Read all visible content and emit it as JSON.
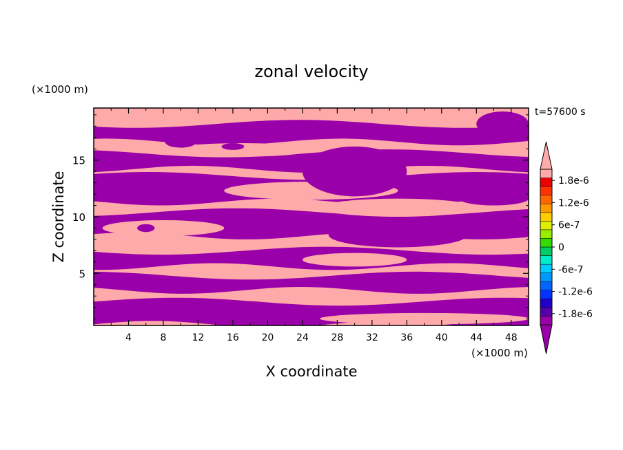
{
  "chart_data": {
    "type": "heatmap",
    "title": "zonal velocity",
    "xlabel": "X coordinate",
    "ylabel": "Z coordinate",
    "x_unit": "(×1000 m)",
    "y_unit": "(×1000 m)",
    "time_label": "t=57600 s",
    "xlim": [
      0,
      50
    ],
    "ylim": [
      0.4,
      19.6
    ],
    "x_ticks": [
      "4",
      "8",
      "12",
      "16",
      "20",
      "24",
      "28",
      "32",
      "36",
      "40",
      "44",
      "48"
    ],
    "y_ticks": [
      "5",
      "10",
      "15"
    ],
    "x_tick_values": [
      4,
      8,
      12,
      16,
      20,
      24,
      28,
      32,
      36,
      40,
      44,
      48
    ],
    "y_tick_values": [
      5,
      10,
      15
    ],
    "colorbar": {
      "labels": [
        "1.8e-6",
        "1.2e-6",
        "6e-7",
        "0",
        "-6e-7",
        "-1.2e-6",
        "-1.8e-6"
      ],
      "label_values": [
        1.8e-06,
        1.2e-06,
        6e-07,
        0,
        -6e-07,
        -1.2e-06,
        -1.8e-06
      ],
      "colors": [
        "#9900aa",
        "#5500aa",
        "#2200cc",
        "#0033ff",
        "#0066ff",
        "#0099ff",
        "#00ccff",
        "#00eecc",
        "#00cc66",
        "#33dd00",
        "#99ee00",
        "#ddee00",
        "#ffcc00",
        "#ff9900",
        "#ff6600",
        "#ff3300",
        "#ee0000",
        "#ffaaaa"
      ],
      "min_value": -2.1e-06,
      "max_value": 2.1e-06
    },
    "field_colors": {
      "positive": "#ffaaaa",
      "negative": "#9900aa"
    },
    "bands_negative": [
      {
        "z0": 0.5,
        "z1": 2.5
      },
      {
        "z0": 3.5,
        "z1": 4.8
      },
      {
        "z0": 5.6,
        "z1": 7.0
      },
      {
        "z0": 8.3,
        "z1": 10.4
      },
      {
        "z0": 11.3,
        "z1": 13.6
      },
      {
        "z0": 14.2,
        "z1": 15.6
      },
      {
        "z0": 16.6,
        "z1": 18.2
      }
    ],
    "blobs_positive": [
      {
        "x": 38,
        "z": 1.0,
        "rx": 12,
        "rz": 0.5
      },
      {
        "x": 30,
        "z": 6.2,
        "rx": 6,
        "rz": 0.6
      },
      {
        "x": 8,
        "z": 9.0,
        "rx": 7,
        "rz": 0.7
      },
      {
        "x": 35,
        "z": 10.8,
        "rx": 9,
        "rz": 0.8
      },
      {
        "x": 25,
        "z": 12.3,
        "rx": 10,
        "rz": 0.8
      },
      {
        "x": 17,
        "z": 15.9,
        "rx": 8,
        "rz": 0.6
      },
      {
        "x": 40,
        "z": 18.9,
        "rx": 10,
        "rz": 0.6
      }
    ],
    "blobs_negative": [
      {
        "x": 30,
        "z": 14.0,
        "rx": 6,
        "rz": 2.2
      },
      {
        "x": 35,
        "z": 8.4,
        "rx": 8,
        "rz": 1.1
      },
      {
        "x": 6,
        "z": 9.0,
        "rx": 1,
        "rz": 0.35
      },
      {
        "x": 16,
        "z": 16.2,
        "rx": 1.3,
        "rz": 0.3
      },
      {
        "x": 10,
        "z": 16.6,
        "rx": 1.8,
        "rz": 0.5
      },
      {
        "x": 47,
        "z": 18.2,
        "rx": 3,
        "rz": 1.1
      },
      {
        "x": 46,
        "z": 11.6,
        "rx": 4,
        "rz": 0.6
      }
    ]
  }
}
